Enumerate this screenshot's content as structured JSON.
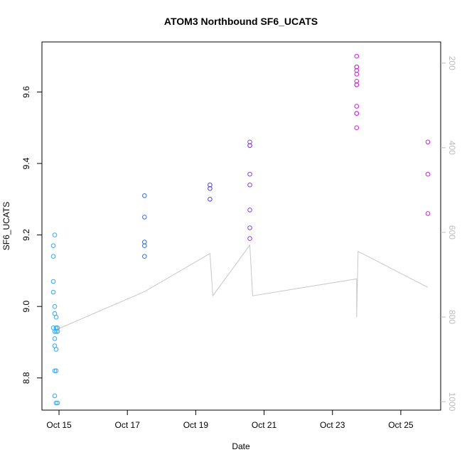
{
  "chart_data": {
    "type": "scatter",
    "title": "ATOM3 Northbound SF6_UCATS",
    "xlabel": "Date",
    "ylabel": "SF6_UCATS",
    "x_unit": "date",
    "xlim": [
      "2016-10-14 12:00",
      "2016-10-26 04:00"
    ],
    "ylim": [
      8.71,
      9.74
    ],
    "x_ticks": [
      {
        "x": "2016-10-15",
        "label": "Oct 15"
      },
      {
        "x": "2016-10-17",
        "label": "Oct 17"
      },
      {
        "x": "2016-10-19",
        "label": "Oct 19"
      },
      {
        "x": "2016-10-21",
        "label": "Oct 21"
      },
      {
        "x": "2016-10-23",
        "label": "Oct 23"
      },
      {
        "x": "2016-10-25",
        "label": "Oct 25"
      }
    ],
    "y_ticks": [
      8.8,
      9.0,
      9.2,
      9.4,
      9.6
    ],
    "y2_ticks": [
      200,
      400,
      600,
      800,
      1000
    ],
    "y2lim": [
      1020,
      150
    ],
    "y2_reversed": true,
    "grid": false,
    "point_groups": [
      {
        "color": "#33aaee",
        "x": [
          "2016-10-14 20:00",
          "2016-10-14 20:00",
          "2016-10-14 20:00",
          "2016-10-14 20:00",
          "2016-10-14 20:00",
          "2016-10-14 21:00",
          "2016-10-14 21:00",
          "2016-10-14 21:00",
          "2016-10-14 21:00",
          "2016-10-14 21:00",
          "2016-10-14 21:00",
          "2016-10-14 21:00",
          "2016-10-14 21:00",
          "2016-10-14 22:00",
          "2016-10-14 22:00",
          "2016-10-14 22:00",
          "2016-10-14 22:00",
          "2016-10-14 22:00",
          "2016-10-14 22:00",
          "2016-10-14 22:00",
          "2016-10-14 23:00",
          "2016-10-14 23:00",
          "2016-10-14 23:00"
        ],
        "y": [
          9.17,
          9.14,
          9.07,
          9.04,
          8.94,
          8.93,
          8.91,
          8.89,
          8.82,
          8.75,
          9.2,
          9.0,
          8.98,
          8.97,
          8.94,
          8.94,
          8.93,
          8.88,
          8.82,
          8.73,
          8.73,
          8.93,
          8.94
        ]
      },
      {
        "color": "#2f6fdf",
        "x": [
          "2016-10-17 12:00",
          "2016-10-17 12:00",
          "2016-10-17 12:00",
          "2016-10-17 12:00",
          "2016-10-17 12:00"
        ],
        "y": [
          9.31,
          9.25,
          9.18,
          9.17,
          9.14
        ]
      },
      {
        "color": "#4a3fe0",
        "x": [
          "2016-10-19 10:00",
          "2016-10-19 10:00",
          "2016-10-19 10:00"
        ],
        "y": [
          9.34,
          9.33,
          9.3
        ]
      },
      {
        "color": "#8a3ee3",
        "x": [
          "2016-10-20 14:00",
          "2016-10-20 14:00",
          "2016-10-20 14:00",
          "2016-10-20 14:00",
          "2016-10-20 14:00",
          "2016-10-20 14:00",
          "2016-10-20 14:00",
          "2016-10-20 14:00"
        ],
        "y": [
          9.46,
          9.45,
          9.45,
          9.37,
          9.34,
          9.27,
          9.22,
          9.19
        ]
      },
      {
        "color": "#cc22dd",
        "x": [
          "2016-10-23 17:00",
          "2016-10-23 17:00",
          "2016-10-23 17:00",
          "2016-10-23 17:00",
          "2016-10-23 17:00",
          "2016-10-23 17:00",
          "2016-10-23 17:00",
          "2016-10-23 17:00",
          "2016-10-23 17:00",
          "2016-10-23 17:00",
          "2016-10-23 17:00",
          "2016-10-23 17:00"
        ],
        "y": [
          9.7,
          9.67,
          9.67,
          9.66,
          9.65,
          9.63,
          9.62,
          9.62,
          9.56,
          9.54,
          9.54,
          9.5
        ]
      },
      {
        "color": "#cc22dd",
        "x": [
          "2016-10-25 19:00",
          "2016-10-25 19:00",
          "2016-10-25 19:00"
        ],
        "y": [
          9.46,
          9.37,
          9.26
        ]
      }
    ],
    "line_series": {
      "axis": "right",
      "color": "#c8c8c8",
      "x": [
        "2016-10-14 22:00",
        "2016-10-17 12:00",
        "2016-10-19 10:00",
        "2016-10-19 12:00",
        "2016-10-20 14:00",
        "2016-10-20 16:00",
        "2016-10-23 17:00",
        "2016-10-23 17:00",
        "2016-10-23 18:00",
        "2016-10-25 19:00"
      ],
      "y": [
        830,
        740,
        650,
        750,
        630,
        750,
        710,
        800,
        645,
        730
      ]
    }
  }
}
